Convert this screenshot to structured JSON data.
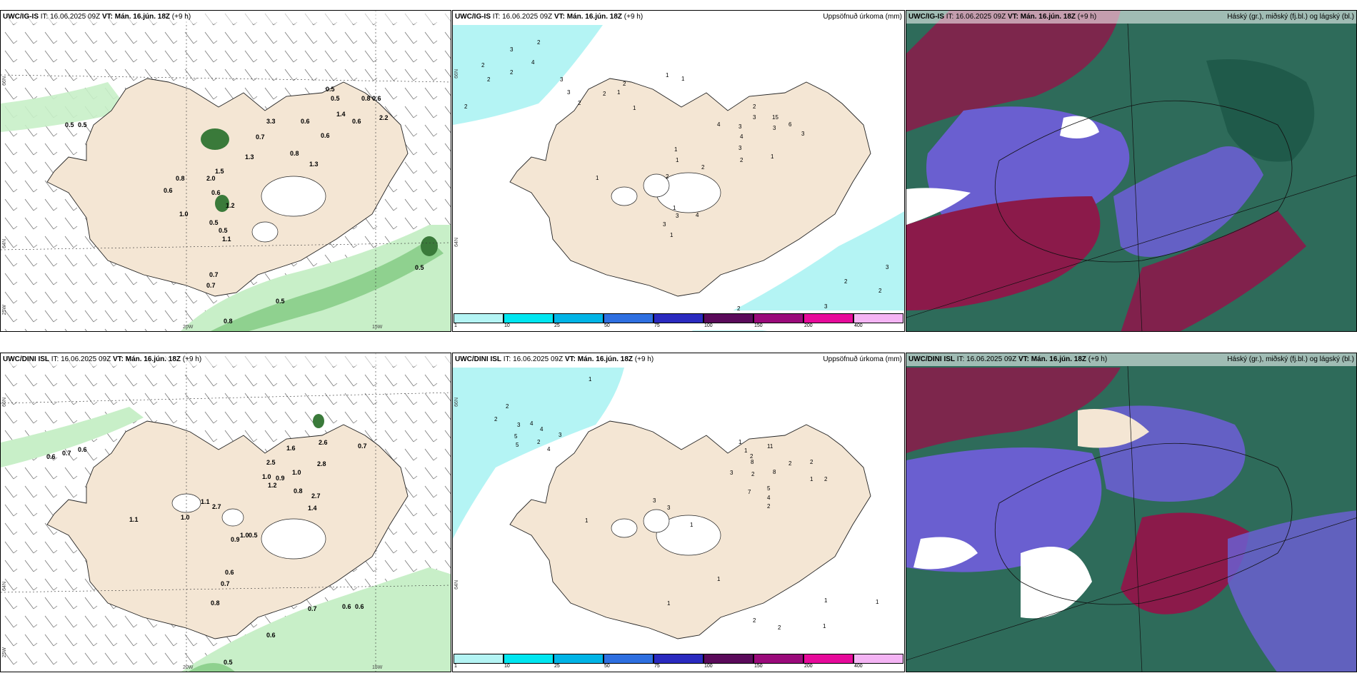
{
  "colors": {
    "land": "#f4e6d4",
    "sea": "#ffffff",
    "precip_light": "#c8efc8",
    "precip_mid": "#8fd18f",
    "precip_dark": "#3a7a3a",
    "accum_cyan": "#b4f4f4",
    "cloud_high": "#2e6b5a",
    "cloud_mid": "#6a5fd0",
    "cloud_low": "#8b1a4a"
  },
  "panels": [
    {
      "id": "igis-precip",
      "header": {
        "model": "UWC/IG-IS",
        "it": "IT: 16.06.2025 09Z",
        "vt": "VT: Mán. 16.jún. 18Z",
        "step": "(+9 h)",
        "right": ""
      },
      "axis_labels": [
        "66N",
        "64N",
        "25W",
        "20W",
        "15W"
      ],
      "values": [
        "0.5",
        "0.5",
        "3.3",
        "0.7",
        "1.3",
        "0.6",
        "0.6",
        "0.8",
        "1.5",
        "2.0",
        "0.6",
        "0.8",
        "1.0",
        "0.6",
        "0.5",
        "1.2",
        "0.5",
        "1.1",
        "0.7",
        "0.7",
        "0.5",
        "0.8",
        "0.5",
        "0.5",
        "1.4",
        "2.2",
        "0.6",
        "0.8",
        "1.3",
        "0.5",
        "0.6"
      ]
    },
    {
      "id": "igis-accum",
      "header": {
        "model": "UWC/IG-IS",
        "it": "IT: 16.06.2025 09Z",
        "vt": "VT: Mán. 16.jún. 18Z",
        "step": "(+9 h)",
        "right": "Uppsöfnuð úrkoma (mm)"
      },
      "axis_labels": [
        "66N",
        "64N"
      ],
      "values": [
        "3",
        "2",
        "2",
        "2",
        "2",
        "2",
        "4",
        "3",
        "3",
        "2",
        "2",
        "1",
        "2",
        "1",
        "1",
        "1",
        "4",
        "3",
        "2",
        "3",
        "15",
        "3",
        "6",
        "3",
        "4",
        "3",
        "1",
        "2",
        "1",
        "2",
        "1",
        "2",
        "1",
        "1",
        "3",
        "4",
        "1",
        "3",
        "2",
        "3",
        "2",
        "2",
        "3"
      ],
      "colorbar": {
        "ticks": [
          "1",
          "10",
          "25",
          "50",
          "75",
          "100",
          "150",
          "200",
          "400"
        ],
        "colors": [
          "#b4f4f4",
          "#00e6f0",
          "#00b4e6",
          "#2e6fe0",
          "#2a2abf",
          "#5a0a5a",
          "#9a0a7a",
          "#e60a9a",
          "#f4b4f4"
        ]
      }
    },
    {
      "id": "igis-cloud",
      "header": {
        "model": "UWC/IG-IS",
        "it": "IT: 16.06.2025 09Z",
        "vt": "VT: Mán. 16.jún. 18Z",
        "step": "(+9 h)",
        "right": "Háský (gr.), miðský (fj.bl.) og lágský (bl.)"
      }
    },
    {
      "id": "dini-precip",
      "header": {
        "model": "UWC/DINI ISL",
        "it": "IT: 16.06.2025 09Z",
        "vt": "VT: Mán. 16.jún. 18Z",
        "step": "(+9 h)",
        "right": ""
      },
      "axis_labels": [
        "66N",
        "64N",
        "25W",
        "20W",
        "15W"
      ],
      "values": [
        "0.6",
        "0.7",
        "0.6",
        "1.6",
        "2.6",
        "2.5",
        "1.0",
        "0.9",
        "1.0",
        "1.2",
        "0.8",
        "2.8",
        "2.7",
        "1.4",
        "0.7",
        "1.1",
        "1.1",
        "2.7",
        "1.0",
        "1.0",
        "0.5",
        "0.9",
        "0.6",
        "0.7",
        "0.8",
        "0.7",
        "0.6",
        "0.6",
        "0.6",
        "0.5"
      ]
    },
    {
      "id": "dini-accum",
      "header": {
        "model": "UWC/DINI ISL",
        "it": "IT: 16.06.2025 09Z",
        "vt": "VT: Mán. 16.jún. 18Z",
        "step": "(+9 h)",
        "right": "Uppsöfnuð úrkoma (mm)"
      },
      "axis_labels": [
        "66N",
        "64N"
      ],
      "values": [
        "1",
        "2",
        "2",
        "3",
        "4",
        "5",
        "4",
        "3",
        "5",
        "2",
        "4",
        "1",
        "1",
        "2",
        "8",
        "11",
        "3",
        "2",
        "2",
        "8",
        "2",
        "1",
        "2",
        "5",
        "4",
        "2",
        "7",
        "3",
        "3",
        "1",
        "1",
        "1",
        "1",
        "2",
        "1",
        "1",
        "2",
        "1"
      ],
      "colorbar": {
        "ticks": [
          "1",
          "10",
          "25",
          "50",
          "75",
          "100",
          "150",
          "200",
          "400"
        ],
        "colors": [
          "#b4f4f4",
          "#00e6f0",
          "#00b4e6",
          "#2e6fe0",
          "#2a2abf",
          "#5a0a5a",
          "#9a0a7a",
          "#e60a9a",
          "#f4b4f4"
        ]
      }
    },
    {
      "id": "dini-cloud",
      "header": {
        "model": "UWC/DINI ISL",
        "it": "IT: 16.06.2025 09Z",
        "vt": "VT: Mán. 16.jún. 18Z",
        "step": "(+9 h)",
        "right": "Háský (gr.), miðský (fj.bl.) og lágský (bl.)"
      }
    }
  ]
}
